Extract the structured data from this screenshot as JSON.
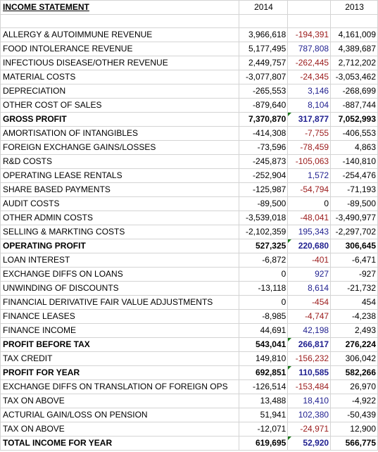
{
  "header": {
    "title": "INCOME STATEMENT",
    "col_2014": "2014",
    "col_change": "",
    "col_2013": "2013"
  },
  "rows": [
    {
      "label": "",
      "y2014": "",
      "change": "",
      "y2013": ""
    },
    {
      "label": "ALLERGY & AUTOIMMUNE REVENUE",
      "y2014": "3,966,618",
      "change": "-194,391",
      "y2013": "4,161,009"
    },
    {
      "label": "FOOD INTOLERANCE REVENUE",
      "y2014": "5,177,495",
      "change": "787,808",
      "y2013": "4,389,687"
    },
    {
      "label": "INFECTIOUS DISEASE/OTHER REVENUE",
      "y2014": "2,449,757",
      "change": "-262,445",
      "y2013": "2,712,202"
    },
    {
      "label": "MATERIAL COSTS",
      "y2014": "-3,077,807",
      "change": "-24,345",
      "y2013": "-3,053,462"
    },
    {
      "label": "DEPRECIATION",
      "y2014": "-265,553",
      "change": "3,146",
      "y2013": "-268,699"
    },
    {
      "label": "OTHER COST OF SALES",
      "y2014": "-879,640",
      "change": "8,104",
      "y2013": "-887,744"
    },
    {
      "label": "GROSS PROFIT",
      "y2014": "7,370,870",
      "change": "317,877",
      "y2013": "7,052,993"
    },
    {
      "label": "AMORTISATION OF INTANGIBLES",
      "y2014": "-414,308",
      "change": "-7,755",
      "y2013": "-406,553"
    },
    {
      "label": "FOREIGN EXCHANGE GAINS/LOSSES",
      "y2014": "-73,596",
      "change": "-78,459",
      "y2013": "4,863"
    },
    {
      "label": "R&D COSTS",
      "y2014": "-245,873",
      "change": "-105,063",
      "y2013": "-140,810"
    },
    {
      "label": "OPERATING LEASE RENTALS",
      "y2014": "-252,904",
      "change": "1,572",
      "y2013": "-254,476"
    },
    {
      "label": "SHARE BASED PAYMENTS",
      "y2014": "-125,987",
      "change": "-54,794",
      "y2013": "-71,193"
    },
    {
      "label": "AUDIT COSTS",
      "y2014": "-89,500",
      "change": "0",
      "y2013": "-89,500"
    },
    {
      "label": "OTHER ADMIN COSTS",
      "y2014": "-3,539,018",
      "change": "-48,041",
      "y2013": "-3,490,977"
    },
    {
      "label": "SELLING & MARKTING COSTS",
      "y2014": "-2,102,359",
      "change": "195,343",
      "y2013": "-2,297,702"
    },
    {
      "label": "OPERATING PROFIT",
      "y2014": "527,325",
      "change": "220,680",
      "y2013": "306,645"
    },
    {
      "label": "LOAN INTEREST",
      "y2014": "-6,872",
      "change": "-401",
      "y2013": "-6,471"
    },
    {
      "label": "EXCHANGE DIFFS ON LOANS",
      "y2014": "0",
      "change": "927",
      "y2013": "-927"
    },
    {
      "label": "UNWINDING OF DISCOUNTS",
      "y2014": "-13,118",
      "change": "8,614",
      "y2013": "-21,732"
    },
    {
      "label": "FINANCIAL DERIVATIVE FAIR VALUE ADJUSTMENTS",
      "y2014": "0",
      "change": "-454",
      "y2013": "454"
    },
    {
      "label": "FINANCE LEASES",
      "y2014": "-8,985",
      "change": "-4,747",
      "y2013": "-4,238"
    },
    {
      "label": "FINANCE INCOME",
      "y2014": "44,691",
      "change": "42,198",
      "y2013": "2,493"
    },
    {
      "label": "PROFIT BEFORE TAX",
      "y2014": "543,041",
      "change": "266,817",
      "y2013": "276,224"
    },
    {
      "label": "TAX CREDIT",
      "y2014": "149,810",
      "change": "-156,232",
      "y2013": "306,042"
    },
    {
      "label": "PROFIT FOR YEAR",
      "y2014": "692,851",
      "change": "110,585",
      "y2013": "582,266"
    },
    {
      "label": "EXCHANGE DIFFS ON TRANSLATION OF FOREIGN OPS",
      "y2014": "-126,514",
      "change": "-153,484",
      "y2013": "26,970"
    },
    {
      "label": "TAX ON ABOVE",
      "y2014": "13,488",
      "change": "18,410",
      "y2013": "-4,922"
    },
    {
      "label": "ACTURIAL GAIN/LOSS ON PENSION",
      "y2014": "51,941",
      "change": "102,380",
      "y2013": "-50,439"
    },
    {
      "label": "TAX ON ABOVE",
      "y2014": "-12,071",
      "change": "-24,971",
      "y2013": "12,900"
    },
    {
      "label": "TOTAL INCOME FOR YEAR",
      "y2014": "619,695",
      "change": "52,920",
      "y2013": "566,775"
    }
  ],
  "colors": {
    "positive_change": "#1f1f8f",
    "negative_change": "#9b1b1b",
    "grid": "#d4d4d4",
    "flag": "#1a7a1a"
  }
}
